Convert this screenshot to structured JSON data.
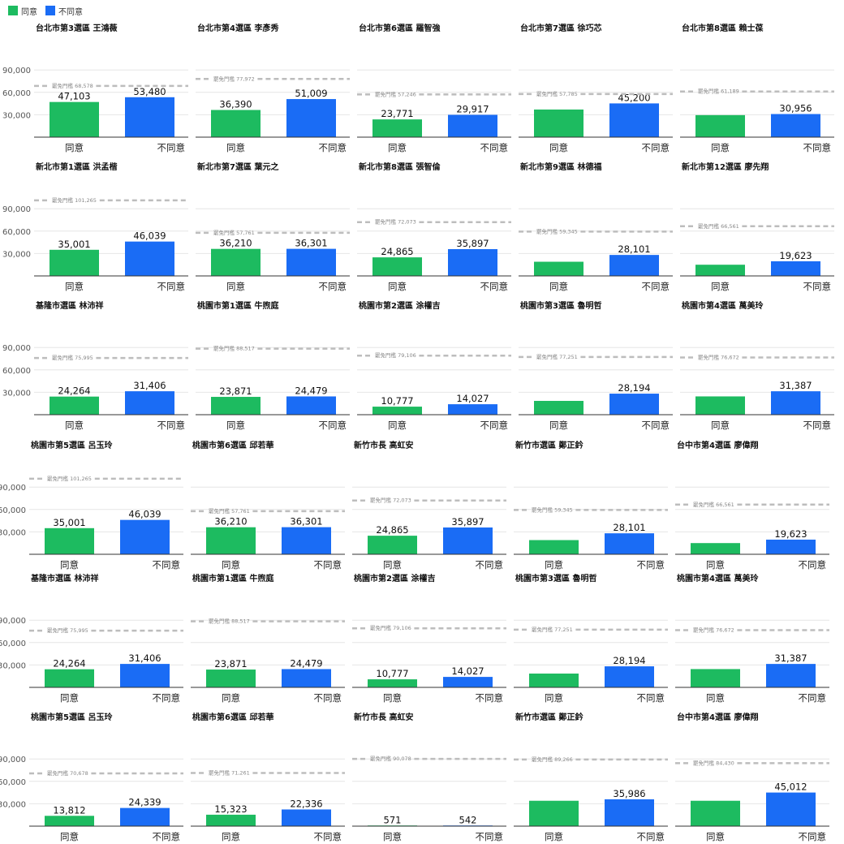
{
  "legend": [
    {
      "label": "同意",
      "color": "#1DBB60"
    },
    {
      "label": "不同意",
      "color": "#1A6CF5"
    }
  ],
  "colors": {
    "agree": "#1DBB60",
    "disagree": "#1A6CF5",
    "threshold": "#BDBDBD",
    "grid": "#E6E6E6",
    "axis": "#333333"
  },
  "chart_data": [
    {
      "type": "bar",
      "title": "台北市第3選區 王鴻薇",
      "categories": [
        "同意",
        "不同意"
      ],
      "values": [
        47103,
        53480
      ],
      "value_labels": [
        "47,103",
        "53,480"
      ],
      "threshold": 68578,
      "threshold_label": "罷免門檻 68,578",
      "ylim": [
        0,
        100000
      ],
      "yticks": [
        "90,000",
        "60,000",
        "30,000"
      ]
    },
    {
      "type": "bar",
      "title": "台北市第4選區 李彥秀",
      "categories": [
        "同意",
        "不同意"
      ],
      "values": [
        36390,
        51009
      ],
      "value_labels": [
        "36,390",
        "51,009"
      ],
      "threshold": 77972,
      "threshold_label": "罷免門檻 77,972",
      "ylim": [
        0,
        100000
      ],
      "yticks": []
    },
    {
      "type": "bar",
      "title": "台北市第6選區 羅智強",
      "categories": [
        "同意",
        "不同意"
      ],
      "values": [
        23771,
        29917
      ],
      "value_labels": [
        "23,771",
        "29,917"
      ],
      "threshold": 57246,
      "threshold_label": "罷免門檻 57,246",
      "ylim": [
        0,
        100000
      ],
      "yticks": []
    },
    {
      "type": "bar",
      "title": "台北市第7選區 徐巧芯",
      "categories": [
        "同意",
        "不同意"
      ],
      "values": [
        37000,
        45200
      ],
      "value_labels": [
        "",
        "45,200"
      ],
      "threshold": 57785,
      "threshold_label": "罷免門檻 57,785",
      "ylim": [
        0,
        100000
      ],
      "yticks": []
    },
    {
      "type": "bar",
      "title": "台北市第8選區 賴士葆",
      "categories": [
        "同意",
        "不同意"
      ],
      "values": [
        29500,
        30956
      ],
      "value_labels": [
        "",
        "30,956"
      ],
      "threshold": 61189,
      "threshold_label": "罷免門檻 61,189",
      "ylim": [
        0,
        100000
      ],
      "yticks": []
    },
    {
      "type": "bar",
      "title": "新北市第1選區 洪孟楷",
      "categories": [
        "同意",
        "不同意"
      ],
      "values": [
        35001,
        46039
      ],
      "value_labels": [
        "35,001",
        "46,039"
      ],
      "threshold": 101265,
      "threshold_label": "罷免門檻 101,265",
      "ylim": [
        0,
        100000
      ],
      "yticks": [
        "90,000",
        "60,000",
        "30,000"
      ]
    },
    {
      "type": "bar",
      "title": "新北市第7選區 葉元之",
      "categories": [
        "同意",
        "不同意"
      ],
      "values": [
        36210,
        36301
      ],
      "value_labels": [
        "36,210",
        "36,301"
      ],
      "threshold": 57761,
      "threshold_label": "罷免門檻 57,761",
      "ylim": [
        0,
        100000
      ],
      "yticks": []
    },
    {
      "type": "bar",
      "title": "新北市第8選區 張智倫",
      "categories": [
        "同意",
        "不同意"
      ],
      "values": [
        24865,
        35897
      ],
      "value_labels": [
        "24,865",
        "35,897"
      ],
      "threshold": 72073,
      "threshold_label": "罷免門檻 72,073",
      "ylim": [
        0,
        100000
      ],
      "yticks": []
    },
    {
      "type": "bar",
      "title": "新北市第9選區 林德福",
      "categories": [
        "同意",
        "不同意"
      ],
      "values": [
        19000,
        28101
      ],
      "value_labels": [
        "",
        "28,101"
      ],
      "threshold": 59345,
      "threshold_label": "罷免門檻 59,345",
      "ylim": [
        0,
        100000
      ],
      "yticks": []
    },
    {
      "type": "bar",
      "title": "新北市第12選區 廖先翔",
      "categories": [
        "同意",
        "不同意"
      ],
      "values": [
        15000,
        19623
      ],
      "value_labels": [
        "",
        "19,623"
      ],
      "threshold": 66561,
      "threshold_label": "罷免門檻 66,561",
      "ylim": [
        0,
        100000
      ],
      "yticks": []
    },
    {
      "type": "bar",
      "title": "基隆市選區 林沛祥",
      "categories": [
        "同意",
        "不同意"
      ],
      "values": [
        24264,
        31406
      ],
      "value_labels": [
        "24,264",
        "31,406"
      ],
      "threshold": 75995,
      "threshold_label": "罷免門檻 75,995",
      "ylim": [
        0,
        100000
      ],
      "yticks": [
        "90,000",
        "60,000",
        "30,000"
      ]
    },
    {
      "type": "bar",
      "title": "桃園市第1選區 牛煦庭",
      "categories": [
        "同意",
        "不同意"
      ],
      "values": [
        23871,
        24479
      ],
      "value_labels": [
        "23,871",
        "24,479"
      ],
      "threshold": 88517,
      "threshold_label": "罷免門檻 88,517",
      "ylim": [
        0,
        100000
      ],
      "yticks": []
    },
    {
      "type": "bar",
      "title": "桃園市第2選區 涂權吉",
      "categories": [
        "同意",
        "不同意"
      ],
      "values": [
        10777,
        14027
      ],
      "value_labels": [
        "10,777",
        "14,027"
      ],
      "threshold": 79106,
      "threshold_label": "罷免門檻 79,106",
      "ylim": [
        0,
        100000
      ],
      "yticks": []
    },
    {
      "type": "bar",
      "title": "桃園市第3選區 魯明哲",
      "categories": [
        "同意",
        "不同意"
      ],
      "values": [
        18500,
        28194
      ],
      "value_labels": [
        "",
        "28,194"
      ],
      "threshold": 77251,
      "threshold_label": "罷免門檻 77,251",
      "ylim": [
        0,
        100000
      ],
      "yticks": []
    },
    {
      "type": "bar",
      "title": "桃園市第4選區 萬美玲",
      "categories": [
        "同意",
        "不同意"
      ],
      "values": [
        24500,
        31387
      ],
      "value_labels": [
        "",
        "31,387"
      ],
      "threshold": 76672,
      "threshold_label": "罷免門檻 76,672",
      "ylim": [
        0,
        100000
      ],
      "yticks": []
    },
    {
      "type": "bar",
      "title": "桃園市第5選區 呂玉玲",
      "categories": [
        "同意",
        "不同意"
      ],
      "values": [
        35001,
        46039
      ],
      "value_labels": [
        "35,001",
        "46,039"
      ],
      "threshold": 101265,
      "threshold_label": "罷免門檻 101,265",
      "ylim": [
        0,
        100000
      ],
      "yticks": [
        "90,000",
        "60,000",
        "30,000"
      ]
    },
    {
      "type": "bar",
      "title": "桃園市第6選區 邱若華",
      "categories": [
        "同意",
        "不同意"
      ],
      "values": [
        36210,
        36301
      ],
      "value_labels": [
        "36,210",
        "36,301"
      ],
      "threshold": 57761,
      "threshold_label": "罷免門檻 57,761",
      "ylim": [
        0,
        100000
      ],
      "yticks": []
    },
    {
      "type": "bar",
      "title": "新竹市長 高虹安",
      "categories": [
        "同意",
        "不同意"
      ],
      "values": [
        24865,
        35897
      ],
      "value_labels": [
        "24,865",
        "35,897"
      ],
      "threshold": 72073,
      "threshold_label": "罷免門檻 72,073",
      "ylim": [
        0,
        100000
      ],
      "yticks": []
    },
    {
      "type": "bar",
      "title": "新竹市選區 鄭正鈐",
      "categories": [
        "同意",
        "不同意"
      ],
      "values": [
        19000,
        28101
      ],
      "value_labels": [
        "",
        "28,101"
      ],
      "threshold": 59345,
      "threshold_label": "罷免門檻 59,345",
      "ylim": [
        0,
        100000
      ],
      "yticks": []
    },
    {
      "type": "bar",
      "title": "台中市第4選區 廖偉翔",
      "categories": [
        "同意",
        "不同意"
      ],
      "values": [
        15000,
        19623
      ],
      "value_labels": [
        "",
        "19,623"
      ],
      "threshold": 66561,
      "threshold_label": "罷免門檻 66,561",
      "ylim": [
        0,
        100000
      ],
      "yticks": []
    },
    {
      "type": "bar",
      "title": "基隆市選區 林沛祥",
      "categories": [
        "同意",
        "不同意"
      ],
      "values": [
        24264,
        31406
      ],
      "value_labels": [
        "24,264",
        "31,406"
      ],
      "threshold": 75995,
      "threshold_label": "罷免門檻 75,995",
      "ylim": [
        0,
        100000
      ],
      "yticks": [
        "90,000",
        "60,000",
        "30,000"
      ]
    },
    {
      "type": "bar",
      "title": "桃園市第1選區 牛煦庭",
      "categories": [
        "同意",
        "不同意"
      ],
      "values": [
        23871,
        24479
      ],
      "value_labels": [
        "23,871",
        "24,479"
      ],
      "threshold": 88517,
      "threshold_label": "罷免門檻 88,517",
      "ylim": [
        0,
        100000
      ],
      "yticks": []
    },
    {
      "type": "bar",
      "title": "桃園市第2選區 涂權吉",
      "categories": [
        "同意",
        "不同意"
      ],
      "values": [
        10777,
        14027
      ],
      "value_labels": [
        "10,777",
        "14,027"
      ],
      "threshold": 79106,
      "threshold_label": "罷免門檻 79,106",
      "ylim": [
        0,
        100000
      ],
      "yticks": []
    },
    {
      "type": "bar",
      "title": "桃園市第3選區 魯明哲",
      "categories": [
        "同意",
        "不同意"
      ],
      "values": [
        18500,
        28194
      ],
      "value_labels": [
        "",
        "28,194"
      ],
      "threshold": 77251,
      "threshold_label": "罷免門檻 77,251",
      "ylim": [
        0,
        100000
      ],
      "yticks": []
    },
    {
      "type": "bar",
      "title": "桃園市第4選區 萬美玲",
      "categories": [
        "同意",
        "不同意"
      ],
      "values": [
        24500,
        31387
      ],
      "value_labels": [
        "",
        "31,387"
      ],
      "threshold": 76672,
      "threshold_label": "罷免門檻 76,672",
      "ylim": [
        0,
        100000
      ],
      "yticks": []
    },
    {
      "type": "bar",
      "title": "桃園市第5選區 呂玉玲",
      "categories": [
        "同意",
        "不同意"
      ],
      "values": [
        13812,
        24339
      ],
      "value_labels": [
        "13,812",
        "24,339"
      ],
      "threshold": 70678,
      "threshold_label": "罷免門檻 70,678",
      "ylim": [
        0,
        100000
      ],
      "yticks": [
        "90,000",
        "60,000",
        "30,000"
      ]
    },
    {
      "type": "bar",
      "title": "桃園市第6選區 邱若華",
      "categories": [
        "同意",
        "不同意"
      ],
      "values": [
        15323,
        22336
      ],
      "value_labels": [
        "15,323",
        "22,336"
      ],
      "threshold": 71261,
      "threshold_label": "罷免門檻 71,261",
      "ylim": [
        0,
        100000
      ],
      "yticks": []
    },
    {
      "type": "bar",
      "title": "新竹市長 高虹安",
      "categories": [
        "同意",
        "不同意"
      ],
      "values": [
        571,
        542
      ],
      "value_labels": [
        "571",
        "542"
      ],
      "threshold": 90078,
      "threshold_label": "罷免門檻 90,078",
      "ylim": [
        0,
        100000
      ],
      "yticks": []
    },
    {
      "type": "bar",
      "title": "新竹市選區 鄭正鈐",
      "categories": [
        "同意",
        "不同意"
      ],
      "values": [
        34000,
        35986
      ],
      "value_labels": [
        "",
        "35,986"
      ],
      "threshold": 89266,
      "threshold_label": "罷免門檻 89,266",
      "ylim": [
        0,
        100000
      ],
      "yticks": []
    },
    {
      "type": "bar",
      "title": "台中市第4選區 廖偉翔",
      "categories": [
        "同意",
        "不同意"
      ],
      "values": [
        34000,
        45012
      ],
      "value_labels": [
        "",
        "45,012"
      ],
      "threshold": 84430,
      "threshold_label": "罷免門檻 84,430",
      "ylim": [
        0,
        100000
      ],
      "yticks": []
    }
  ]
}
